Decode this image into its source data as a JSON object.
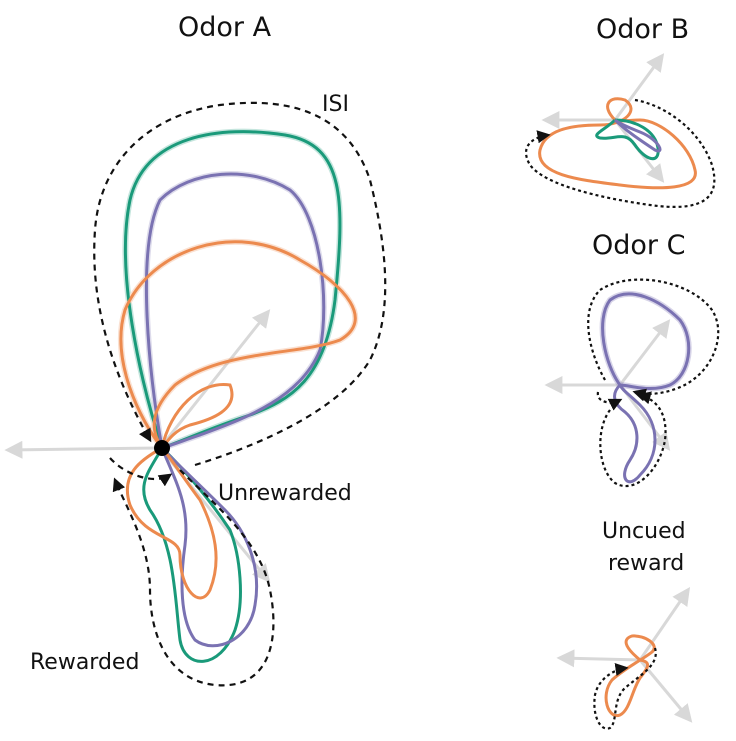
{
  "panels": {
    "odor_a": {
      "title": "Odor A",
      "labels": {
        "isi": "ISI",
        "unrewarded": "Unrewarded",
        "rewarded": "Rewarded"
      }
    },
    "odor_b": {
      "title": "Odor B"
    },
    "odor_c": {
      "title": "Odor C"
    },
    "uncued": {
      "title_line1": "Uncued",
      "title_line2": "reward"
    }
  },
  "colors": {
    "green": "#1a9a7a",
    "purple": "#7a72b2",
    "orange": "#ec8a4e",
    "axis": "#d8d8d8",
    "dashed": "#111111"
  }
}
